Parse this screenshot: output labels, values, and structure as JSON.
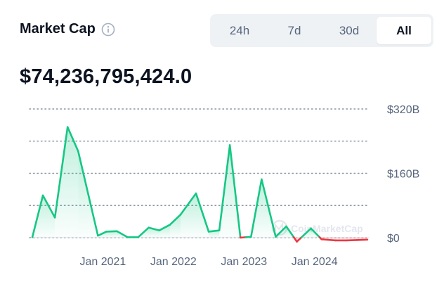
{
  "header": {
    "title": "Market Cap",
    "info_icon": "info-icon",
    "tabs": [
      {
        "label": "24h",
        "active": false
      },
      {
        "label": "7d",
        "active": false
      },
      {
        "label": "30d",
        "active": false
      },
      {
        "label": "All",
        "active": true
      }
    ],
    "value": "$74,236,795,424.0"
  },
  "chart_data": {
    "type": "line",
    "title": "",
    "xlabel": "",
    "ylabel": "",
    "baseline": 1,
    "ylim": [
      -10,
      320
    ],
    "xlim": [
      2020.0,
      2024.75
    ],
    "grid": true,
    "colors": {
      "above": "#16c784",
      "below": "#ea3943"
    },
    "y_ticks": [
      {
        "value": 320,
        "label": "$320B"
      },
      {
        "value": 160,
        "label": "$160B"
      },
      {
        "value": 0,
        "label": "$0"
      }
    ],
    "x_ticks": [
      {
        "value": 2021.0,
        "label": "Jan 2021"
      },
      {
        "value": 2022.0,
        "label": "Jan 2022"
      },
      {
        "value": 2023.0,
        "label": "Jan 2023"
      },
      {
        "value": 2024.0,
        "label": "Jan 2024"
      }
    ],
    "x": [
      2020.0,
      2020.15,
      2020.32,
      2020.5,
      2020.65,
      2020.93,
      2021.05,
      2021.2,
      2021.35,
      2021.5,
      2021.65,
      2021.8,
      2021.95,
      2022.1,
      2022.32,
      2022.5,
      2022.65,
      2022.8,
      2022.95,
      2023.1,
      2023.25,
      2023.45,
      2023.6,
      2023.75,
      2023.95,
      2024.1,
      2024.3,
      2024.45,
      2024.6,
      2024.75
    ],
    "y": [
      1,
      105,
      50,
      275,
      215,
      5,
      15,
      16,
      1,
      1,
      25,
      18,
      32,
      57,
      110,
      15,
      18,
      230,
      0,
      2,
      145,
      2,
      28,
      -10,
      23,
      -4,
      -7,
      -7,
      -6,
      -5
    ],
    "watermark": "CoinMarketCap"
  }
}
